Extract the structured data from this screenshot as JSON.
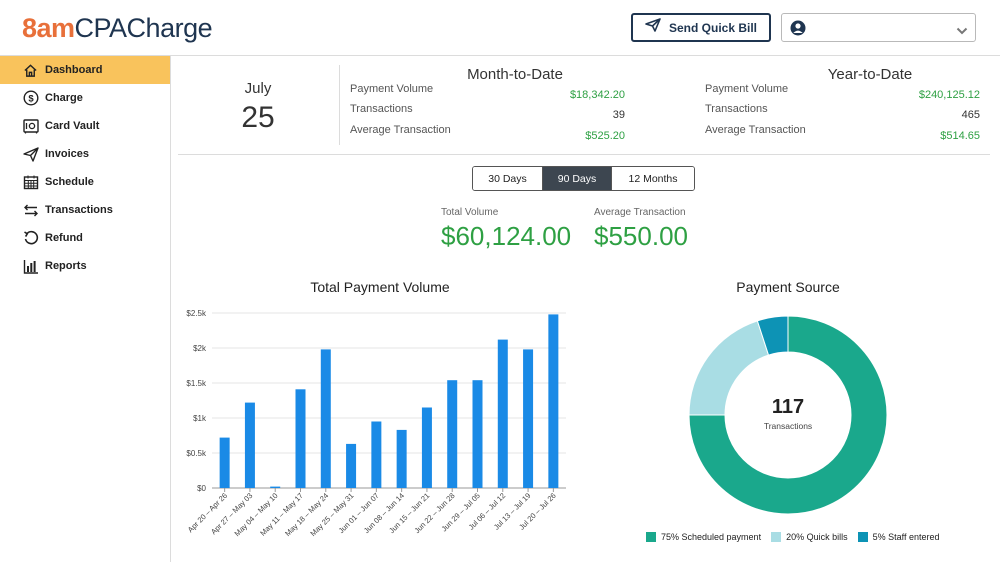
{
  "header": {
    "brand_prefix": "8am",
    "brand_name": "CPACharge",
    "quick_bill_label": "Send Quick Bill"
  },
  "sidebar": {
    "items": [
      {
        "label": "Dashboard",
        "icon": "home-icon",
        "active": true
      },
      {
        "label": "Charge",
        "icon": "dollar-circle-icon"
      },
      {
        "label": "Card Vault",
        "icon": "card-vault-icon"
      },
      {
        "label": "Invoices",
        "icon": "paper-plane-icon"
      },
      {
        "label": "Schedule",
        "icon": "calendar-icon"
      },
      {
        "label": "Transactions",
        "icon": "transfer-arrows-icon"
      },
      {
        "label": "Refund",
        "icon": "refund-arrow-icon"
      },
      {
        "label": "Reports",
        "icon": "bar-chart-icon"
      }
    ]
  },
  "date": {
    "month": "July",
    "day": "25"
  },
  "month_to_date": {
    "title": "Month-to-Date",
    "rows": [
      {
        "label": "Payment Volume",
        "value": "$18,342.20"
      },
      {
        "label": "Transactions",
        "value": "39"
      },
      {
        "label": "Average Transaction",
        "value": "$525.20"
      }
    ]
  },
  "year_to_date": {
    "title": "Year-to-Date",
    "rows": [
      {
        "label": "Payment Volume",
        "value": "$240,125.12"
      },
      {
        "label": "Transactions",
        "value": "465"
      },
      {
        "label": "Average Transaction",
        "value": "$514.65"
      }
    ]
  },
  "range": {
    "options": [
      "30 Days",
      "90 Days",
      "12 Months"
    ],
    "selected": "90 Days"
  },
  "kpis": {
    "total_volume_label": "Total Volume",
    "total_volume": "$60,124.00",
    "avg_transaction_label": "Average Transaction",
    "avg_transaction": "$550.00"
  },
  "colors": {
    "accent": "#f9c35c",
    "brand": "#1f3550",
    "positive": "#2ea043",
    "bar": "#1a8ae6",
    "donut_scheduled": "#1aa88c",
    "donut_quick": "#a9dde4",
    "donut_staff": "#0d93b5"
  },
  "chart_data": [
    {
      "type": "bar",
      "title": "Total Payment Volume",
      "categories": [
        "Apr 20 – Apr 26",
        "Apr 27 – May 03",
        "May 04 – May 10",
        "May 11 – May 17",
        "May 18 – May 24",
        "May 25 – May 31",
        "Jun 01 – Jun 07",
        "Jun 08 – Jun 14",
        "Jun 15 – Jun 21",
        "Jun 22 – Jun 28",
        "Jun 29 – Jul 05",
        "Jul 06 – Jul 12",
        "Jul 13 – Jul 19",
        "Jul 20 – Jul 26"
      ],
      "values": [
        720,
        1220,
        20,
        1410,
        1980,
        630,
        950,
        830,
        1150,
        1540,
        1540,
        2120,
        1980,
        2480
      ],
      "ylim": [
        0,
        2500
      ],
      "yticks": [
        "$0",
        "$0.5k",
        "$1k",
        "$1.5k",
        "$2k",
        "$2.5k"
      ],
      "grid": true
    },
    {
      "type": "pie",
      "title": "Payment Source",
      "center_value": "117",
      "center_label": "Transactions",
      "slices": [
        {
          "label": "75% Scheduled payment",
          "value": 75
        },
        {
          "label": "20% Quick bills",
          "value": 20
        },
        {
          "label": "5% Staff entered",
          "value": 5
        }
      ]
    }
  ]
}
